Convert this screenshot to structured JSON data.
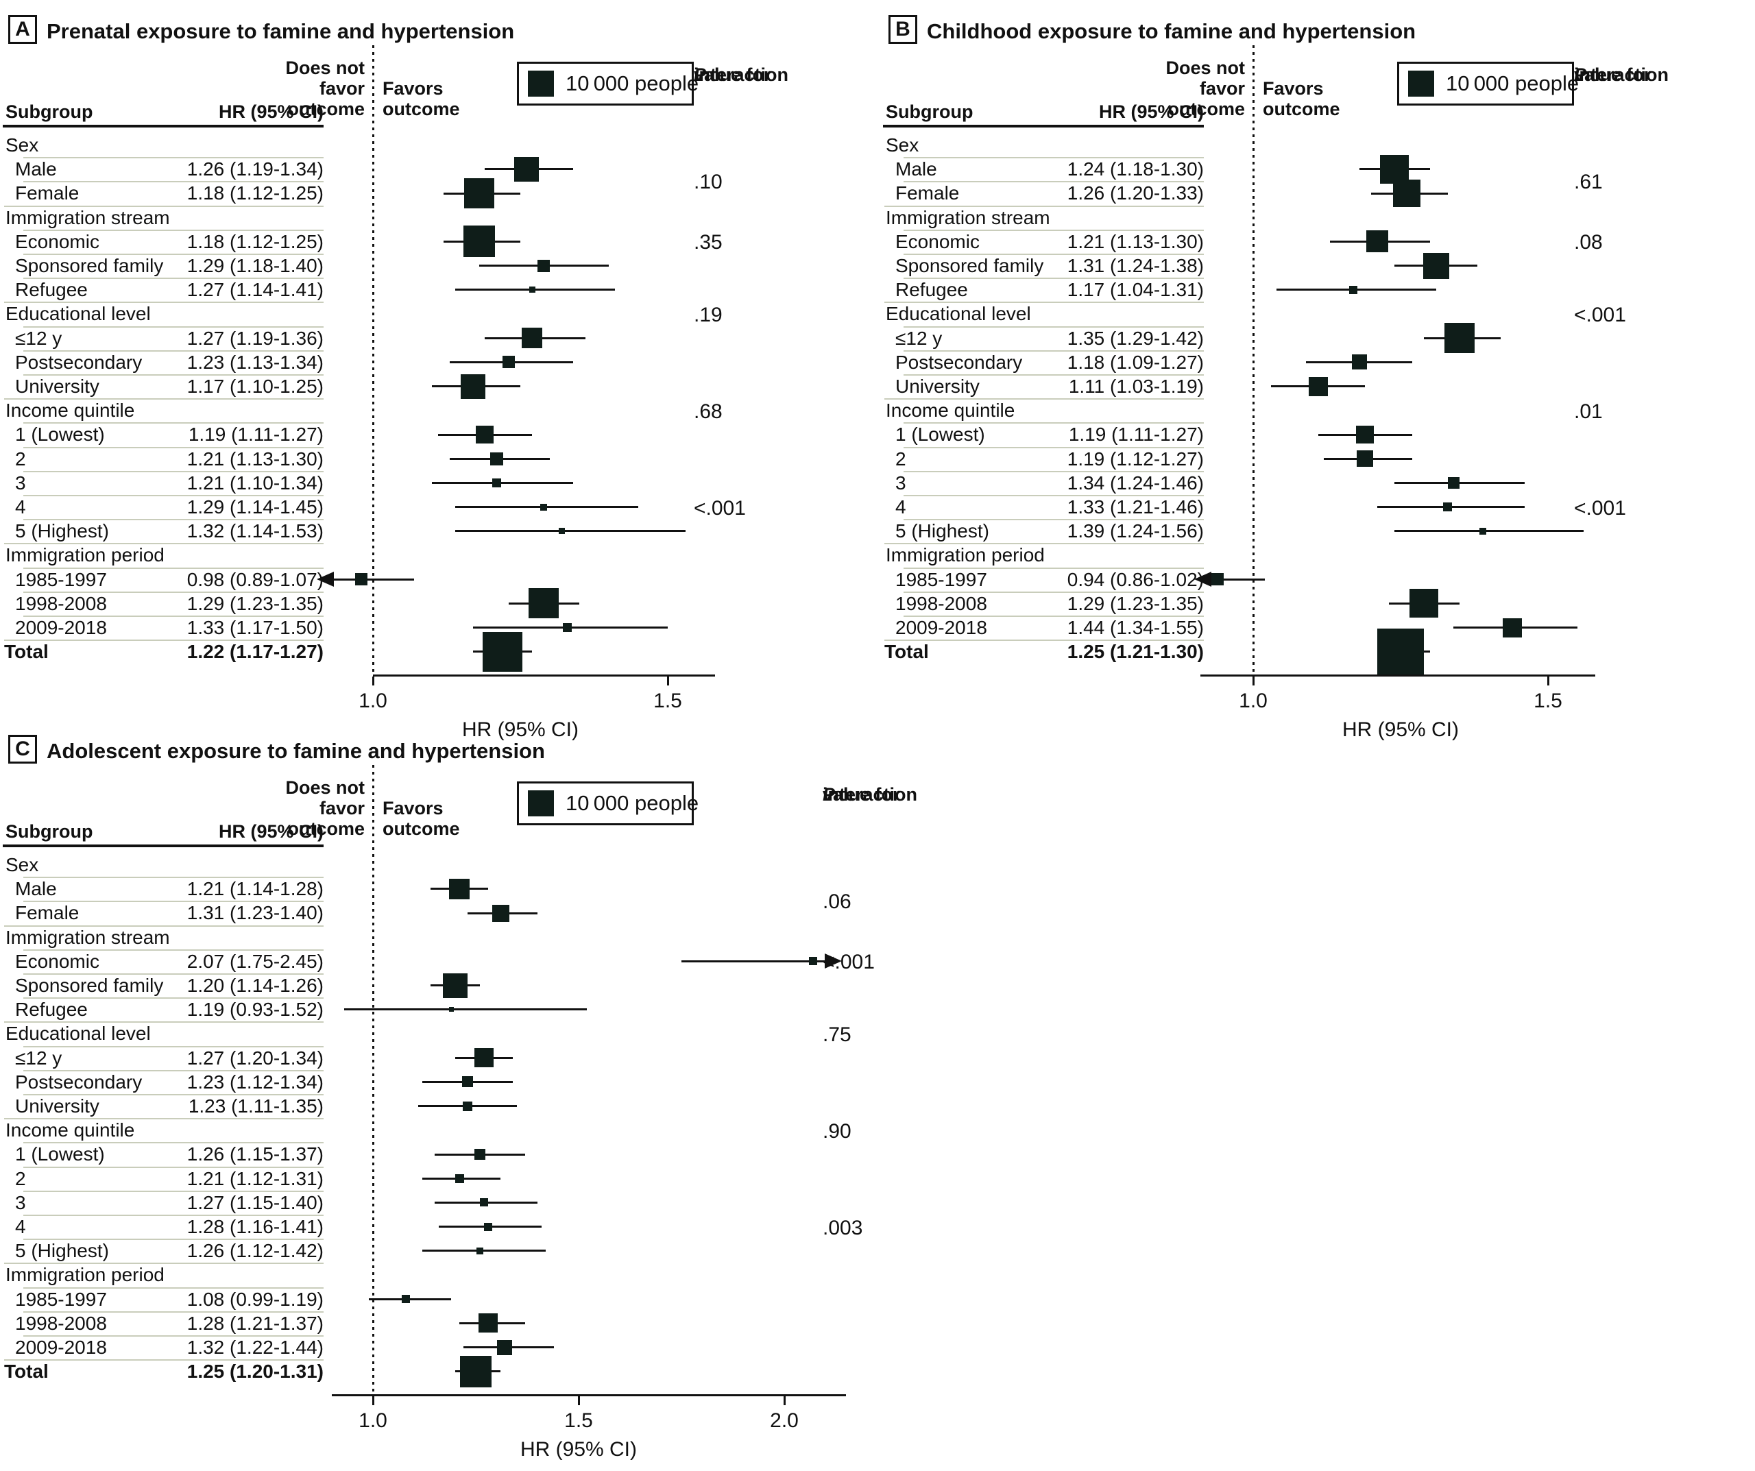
{
  "figure": {
    "col_subgroup": "Subgroup",
    "col_hr": "HR (95% CI)",
    "left_label_lines": [
      "Does not",
      "favor",
      "outcome"
    ],
    "right_label_lines": [
      "Favors",
      "outcome"
    ],
    "colors": {
      "ink": "#111111",
      "square": "#0f1d19",
      "separator": "#c9cdbb"
    }
  },
  "chart_data": [
    {
      "type": "forest",
      "panel_letter": "A",
      "title": "Prenatal exposure to famine and hypertension",
      "xlabel": "HR (95% CI)",
      "x_ticks": [
        1.0,
        1.5
      ],
      "x_tick_labels": [
        "1.0",
        "1.5"
      ],
      "legend_label": "10 000 people",
      "pvalue_header_p": "P",
      "pvalue_header_rest": " value for",
      "pvalue_header_line2": "interaction",
      "groups": [
        {
          "label": "Sex",
          "p_value": ".10",
          "items": [
            {
              "label": "Male",
              "hr": 1.26,
              "lo": 1.19,
              "hi": 1.34,
              "ci_text": "1.26 (1.19-1.34)",
              "size": 36
            },
            {
              "label": "Female",
              "hr": 1.18,
              "lo": 1.12,
              "hi": 1.25,
              "ci_text": "1.18 (1.12-1.25)",
              "size": 44
            }
          ]
        },
        {
          "label": "Immigration stream",
          "p_value": ".35",
          "items": [
            {
              "label": "Economic",
              "hr": 1.18,
              "lo": 1.12,
              "hi": 1.25,
              "ci_text": "1.18 (1.12-1.25)",
              "size": 46
            },
            {
              "label": "Sponsored family",
              "hr": 1.29,
              "lo": 1.18,
              "hi": 1.4,
              "ci_text": "1.29 (1.18-1.40)",
              "size": 18
            },
            {
              "label": "Refugee",
              "hr": 1.27,
              "lo": 1.14,
              "hi": 1.41,
              "ci_text": "1.27 (1.14-1.41)",
              "size": 9
            }
          ]
        },
        {
          "label": "Educational level",
          "p_value": ".19",
          "items": [
            {
              "label": "≤12 y",
              "hr": 1.27,
              "lo": 1.19,
              "hi": 1.36,
              "ci_text": "1.27 (1.19-1.36)",
              "size": 30
            },
            {
              "label": "Postsecondary",
              "hr": 1.23,
              "lo": 1.13,
              "hi": 1.34,
              "ci_text": "1.23 (1.13-1.34)",
              "size": 18
            },
            {
              "label": "University",
              "hr": 1.17,
              "lo": 1.1,
              "hi": 1.25,
              "ci_text": "1.17 (1.10-1.25)",
              "size": 36
            }
          ]
        },
        {
          "label": "Income quintile",
          "p_value": ".68",
          "items": [
            {
              "label": "1 (Lowest)",
              "hr": 1.19,
              "lo": 1.11,
              "hi": 1.27,
              "ci_text": "1.19 (1.11-1.27)",
              "size": 26
            },
            {
              "label": "2",
              "hr": 1.21,
              "lo": 1.13,
              "hi": 1.3,
              "ci_text": "1.21 (1.13-1.30)",
              "size": 19
            },
            {
              "label": "3",
              "hr": 1.21,
              "lo": 1.1,
              "hi": 1.34,
              "ci_text": "1.21 (1.10-1.34)",
              "size": 13
            },
            {
              "label": "4",
              "hr": 1.29,
              "lo": 1.14,
              "hi": 1.45,
              "ci_text": "1.29 (1.14-1.45)",
              "size": 10
            },
            {
              "label": "5 (Highest)",
              "hr": 1.32,
              "lo": 1.14,
              "hi": 1.53,
              "ci_text": "1.32 (1.14-1.53)",
              "size": 9
            }
          ]
        },
        {
          "label": "Immigration period",
          "p_value": "<.001",
          "items": [
            {
              "label": "1985-1997",
              "hr": 0.98,
              "lo": 0.89,
              "hi": 1.07,
              "ci_text": "0.98 (0.89-1.07)",
              "size": 18,
              "arrow": "left"
            },
            {
              "label": "1998-2008",
              "hr": 1.29,
              "lo": 1.23,
              "hi": 1.35,
              "ci_text": "1.29 (1.23-1.35)",
              "size": 44
            },
            {
              "label": "2009-2018",
              "hr": 1.33,
              "lo": 1.17,
              "hi": 1.5,
              "ci_text": "1.33 (1.17-1.50)",
              "size": 13
            }
          ]
        }
      ],
      "total": {
        "label": "Total",
        "hr": 1.22,
        "lo": 1.17,
        "hi": 1.27,
        "ci_text": "1.22 (1.17-1.27)",
        "size": 58
      }
    },
    {
      "type": "forest",
      "panel_letter": "B",
      "title": "Childhood exposure to famine and hypertension",
      "xlabel": "HR (95% CI)",
      "x_ticks": [
        1.0,
        1.5
      ],
      "x_tick_labels": [
        "1.0",
        "1.5"
      ],
      "legend_label": "10 000 people",
      "pvalue_header_p": "P",
      "pvalue_header_rest": " value for",
      "pvalue_header_line2": "interaction",
      "groups": [
        {
          "label": "Sex",
          "p_value": ".61",
          "items": [
            {
              "label": "Male",
              "hr": 1.24,
              "lo": 1.18,
              "hi": 1.3,
              "ci_text": "1.24 (1.18-1.30)",
              "size": 42
            },
            {
              "label": "Female",
              "hr": 1.26,
              "lo": 1.2,
              "hi": 1.33,
              "ci_text": "1.26 (1.20-1.33)",
              "size": 40
            }
          ]
        },
        {
          "label": "Immigration stream",
          "p_value": ".08",
          "items": [
            {
              "label": "Economic",
              "hr": 1.21,
              "lo": 1.13,
              "hi": 1.3,
              "ci_text": "1.21 (1.13-1.30)",
              "size": 32
            },
            {
              "label": "Sponsored family",
              "hr": 1.31,
              "lo": 1.24,
              "hi": 1.38,
              "ci_text": "1.31 (1.24-1.38)",
              "size": 38
            },
            {
              "label": "Refugee",
              "hr": 1.17,
              "lo": 1.04,
              "hi": 1.31,
              "ci_text": "1.17 (1.04-1.31)",
              "size": 12
            }
          ]
        },
        {
          "label": "Educational level",
          "p_value": "<.001",
          "items": [
            {
              "label": "≤12 y",
              "hr": 1.35,
              "lo": 1.29,
              "hi": 1.42,
              "ci_text": "1.35 (1.29-1.42)",
              "size": 44
            },
            {
              "label": "Postsecondary",
              "hr": 1.18,
              "lo": 1.09,
              "hi": 1.27,
              "ci_text": "1.18 (1.09-1.27)",
              "size": 22
            },
            {
              "label": "University",
              "hr": 1.11,
              "lo": 1.03,
              "hi": 1.19,
              "ci_text": "1.11 (1.03-1.19)",
              "size": 28
            }
          ]
        },
        {
          "label": "Income quintile",
          "p_value": ".01",
          "items": [
            {
              "label": "1 (Lowest)",
              "hr": 1.19,
              "lo": 1.11,
              "hi": 1.27,
              "ci_text": "1.19 (1.11-1.27)",
              "size": 26
            },
            {
              "label": "2",
              "hr": 1.19,
              "lo": 1.12,
              "hi": 1.27,
              "ci_text": "1.19 (1.12-1.27)",
              "size": 24
            },
            {
              "label": "3",
              "hr": 1.34,
              "lo": 1.24,
              "hi": 1.46,
              "ci_text": "1.34 (1.24-1.46)",
              "size": 17
            },
            {
              "label": "4",
              "hr": 1.33,
              "lo": 1.21,
              "hi": 1.46,
              "ci_text": "1.33 (1.21-1.46)",
              "size": 13
            },
            {
              "label": "5 (Highest)",
              "hr": 1.39,
              "lo": 1.24,
              "hi": 1.56,
              "ci_text": "1.39 (1.24-1.56)",
              "size": 10
            }
          ]
        },
        {
          "label": "Immigration period",
          "p_value": "<.001",
          "items": [
            {
              "label": "1985-1997",
              "hr": 0.94,
              "lo": 0.86,
              "hi": 1.02,
              "ci_text": "0.94 (0.86-1.02)",
              "size": 18,
              "arrow": "left"
            },
            {
              "label": "1998-2008",
              "hr": 1.29,
              "lo": 1.23,
              "hi": 1.35,
              "ci_text": "1.29 (1.23-1.35)",
              "size": 42
            },
            {
              "label": "2009-2018",
              "hr": 1.44,
              "lo": 1.34,
              "hi": 1.55,
              "ci_text": "1.44 (1.34-1.55)",
              "size": 28
            }
          ]
        }
      ],
      "total": {
        "label": "Total",
        "hr": 1.25,
        "lo": 1.21,
        "hi": 1.3,
        "ci_text": "1.25 (1.21-1.30)",
        "size": 68
      }
    },
    {
      "type": "forest",
      "panel_letter": "C",
      "title": "Adolescent exposure to famine and hypertension",
      "xlabel": "HR (95% CI)",
      "x_ticks": [
        1.0,
        1.5,
        2.0
      ],
      "x_tick_labels": [
        "1.0",
        "1.5",
        "2.0"
      ],
      "legend_label": "10 000 people",
      "pvalue_header_p": "P",
      "pvalue_header_rest": " value for",
      "pvalue_header_line2": "interaction",
      "groups": [
        {
          "label": "Sex",
          "p_value": ".06",
          "items": [
            {
              "label": "Male",
              "hr": 1.21,
              "lo": 1.14,
              "hi": 1.28,
              "ci_text": "1.21 (1.14-1.28)",
              "size": 30
            },
            {
              "label": "Female",
              "hr": 1.31,
              "lo": 1.23,
              "hi": 1.4,
              "ci_text": "1.31 (1.23-1.40)",
              "size": 25
            }
          ]
        },
        {
          "label": "Immigration stream",
          "p_value": "<.001",
          "items": [
            {
              "label": "Economic",
              "hr": 2.07,
              "lo": 1.75,
              "hi": 2.45,
              "ci_text": "2.07 (1.75-2.45)",
              "size": 12,
              "arrow": "right"
            },
            {
              "label": "Sponsored family",
              "hr": 1.2,
              "lo": 1.14,
              "hi": 1.26,
              "ci_text": "1.20 (1.14-1.26)",
              "size": 36
            },
            {
              "label": "Refugee",
              "hr": 1.19,
              "lo": 0.93,
              "hi": 1.52,
              "ci_text": "1.19 (0.93-1.52)",
              "size": 7
            }
          ]
        },
        {
          "label": "Educational level",
          "p_value": ".75",
          "items": [
            {
              "label": "≤12 y",
              "hr": 1.27,
              "lo": 1.2,
              "hi": 1.34,
              "ci_text": "1.27 (1.20-1.34)",
              "size": 28
            },
            {
              "label": "Postsecondary",
              "hr": 1.23,
              "lo": 1.12,
              "hi": 1.34,
              "ci_text": "1.23 (1.12-1.34)",
              "size": 16
            },
            {
              "label": "University",
              "hr": 1.23,
              "lo": 1.11,
              "hi": 1.35,
              "ci_text": "1.23 (1.11-1.35)",
              "size": 14
            }
          ]
        },
        {
          "label": "Income quintile",
          "p_value": ".90",
          "items": [
            {
              "label": "1 (Lowest)",
              "hr": 1.26,
              "lo": 1.15,
              "hi": 1.37,
              "ci_text": "1.26 (1.15-1.37)",
              "size": 16
            },
            {
              "label": "2",
              "hr": 1.21,
              "lo": 1.12,
              "hi": 1.31,
              "ci_text": "1.21 (1.12-1.31)",
              "size": 13
            },
            {
              "label": "3",
              "hr": 1.27,
              "lo": 1.15,
              "hi": 1.4,
              "ci_text": "1.27 (1.15-1.40)",
              "size": 12
            },
            {
              "label": "4",
              "hr": 1.28,
              "lo": 1.16,
              "hi": 1.41,
              "ci_text": "1.28 (1.16-1.41)",
              "size": 12
            },
            {
              "label": "5 (Highest)",
              "hr": 1.26,
              "lo": 1.12,
              "hi": 1.42,
              "ci_text": "1.26 (1.12-1.42)",
              "size": 10
            }
          ]
        },
        {
          "label": "Immigration period",
          "p_value": ".003",
          "items": [
            {
              "label": "1985-1997",
              "hr": 1.08,
              "lo": 0.99,
              "hi": 1.19,
              "ci_text": "1.08 (0.99-1.19)",
              "size": 12
            },
            {
              "label": "1998-2008",
              "hr": 1.28,
              "lo": 1.21,
              "hi": 1.37,
              "ci_text": "1.28 (1.21-1.37)",
              "size": 28
            },
            {
              "label": "2009-2018",
              "hr": 1.32,
              "lo": 1.22,
              "hi": 1.44,
              "ci_text": "1.32 (1.22-1.44)",
              "size": 22
            }
          ]
        }
      ],
      "total": {
        "label": "Total",
        "hr": 1.25,
        "lo": 1.2,
        "hi": 1.31,
        "ci_text": "1.25 (1.20-1.31)",
        "size": 46
      }
    }
  ]
}
